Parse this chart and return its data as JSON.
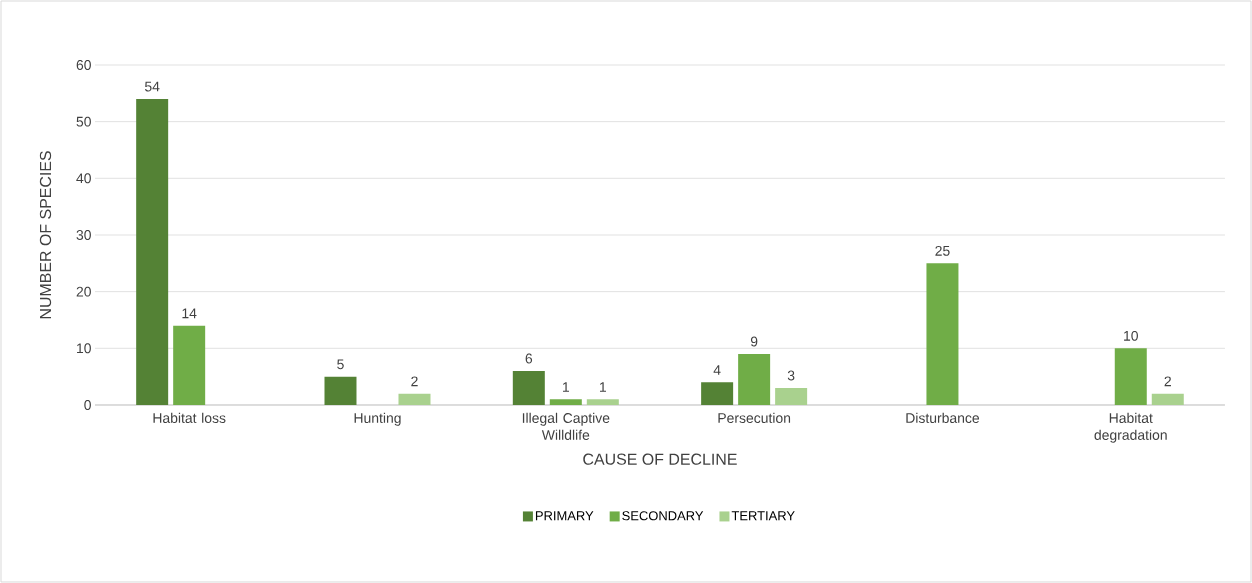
{
  "chart_data": {
    "type": "bar",
    "xlabel": "CAUSE OF DECLINE",
    "ylabel": "NUMBER OF SPECIES",
    "categories": [
      "Habitat loss",
      "Hunting",
      "Illegal Captive Willdlife",
      "Persecution",
      "Disturbance",
      "Habitat degradation"
    ],
    "series": [
      {
        "name": "PRIMARY",
        "color": "#548235",
        "values": [
          54,
          5,
          6,
          4,
          null,
          null
        ]
      },
      {
        "name": "SECONDARY",
        "color": "#70ad47",
        "values": [
          14,
          null,
          1,
          9,
          25,
          10
        ]
      },
      {
        "name": "TERTIARY",
        "color": "#a9d18e",
        "values": [
          null,
          2,
          1,
          3,
          null,
          2
        ]
      }
    ],
    "ylim": [
      0,
      60
    ],
    "yticks": [
      0,
      10,
      20,
      30,
      40,
      50,
      60
    ],
    "grid": "y",
    "legend": "bottom",
    "data_labels": true
  }
}
